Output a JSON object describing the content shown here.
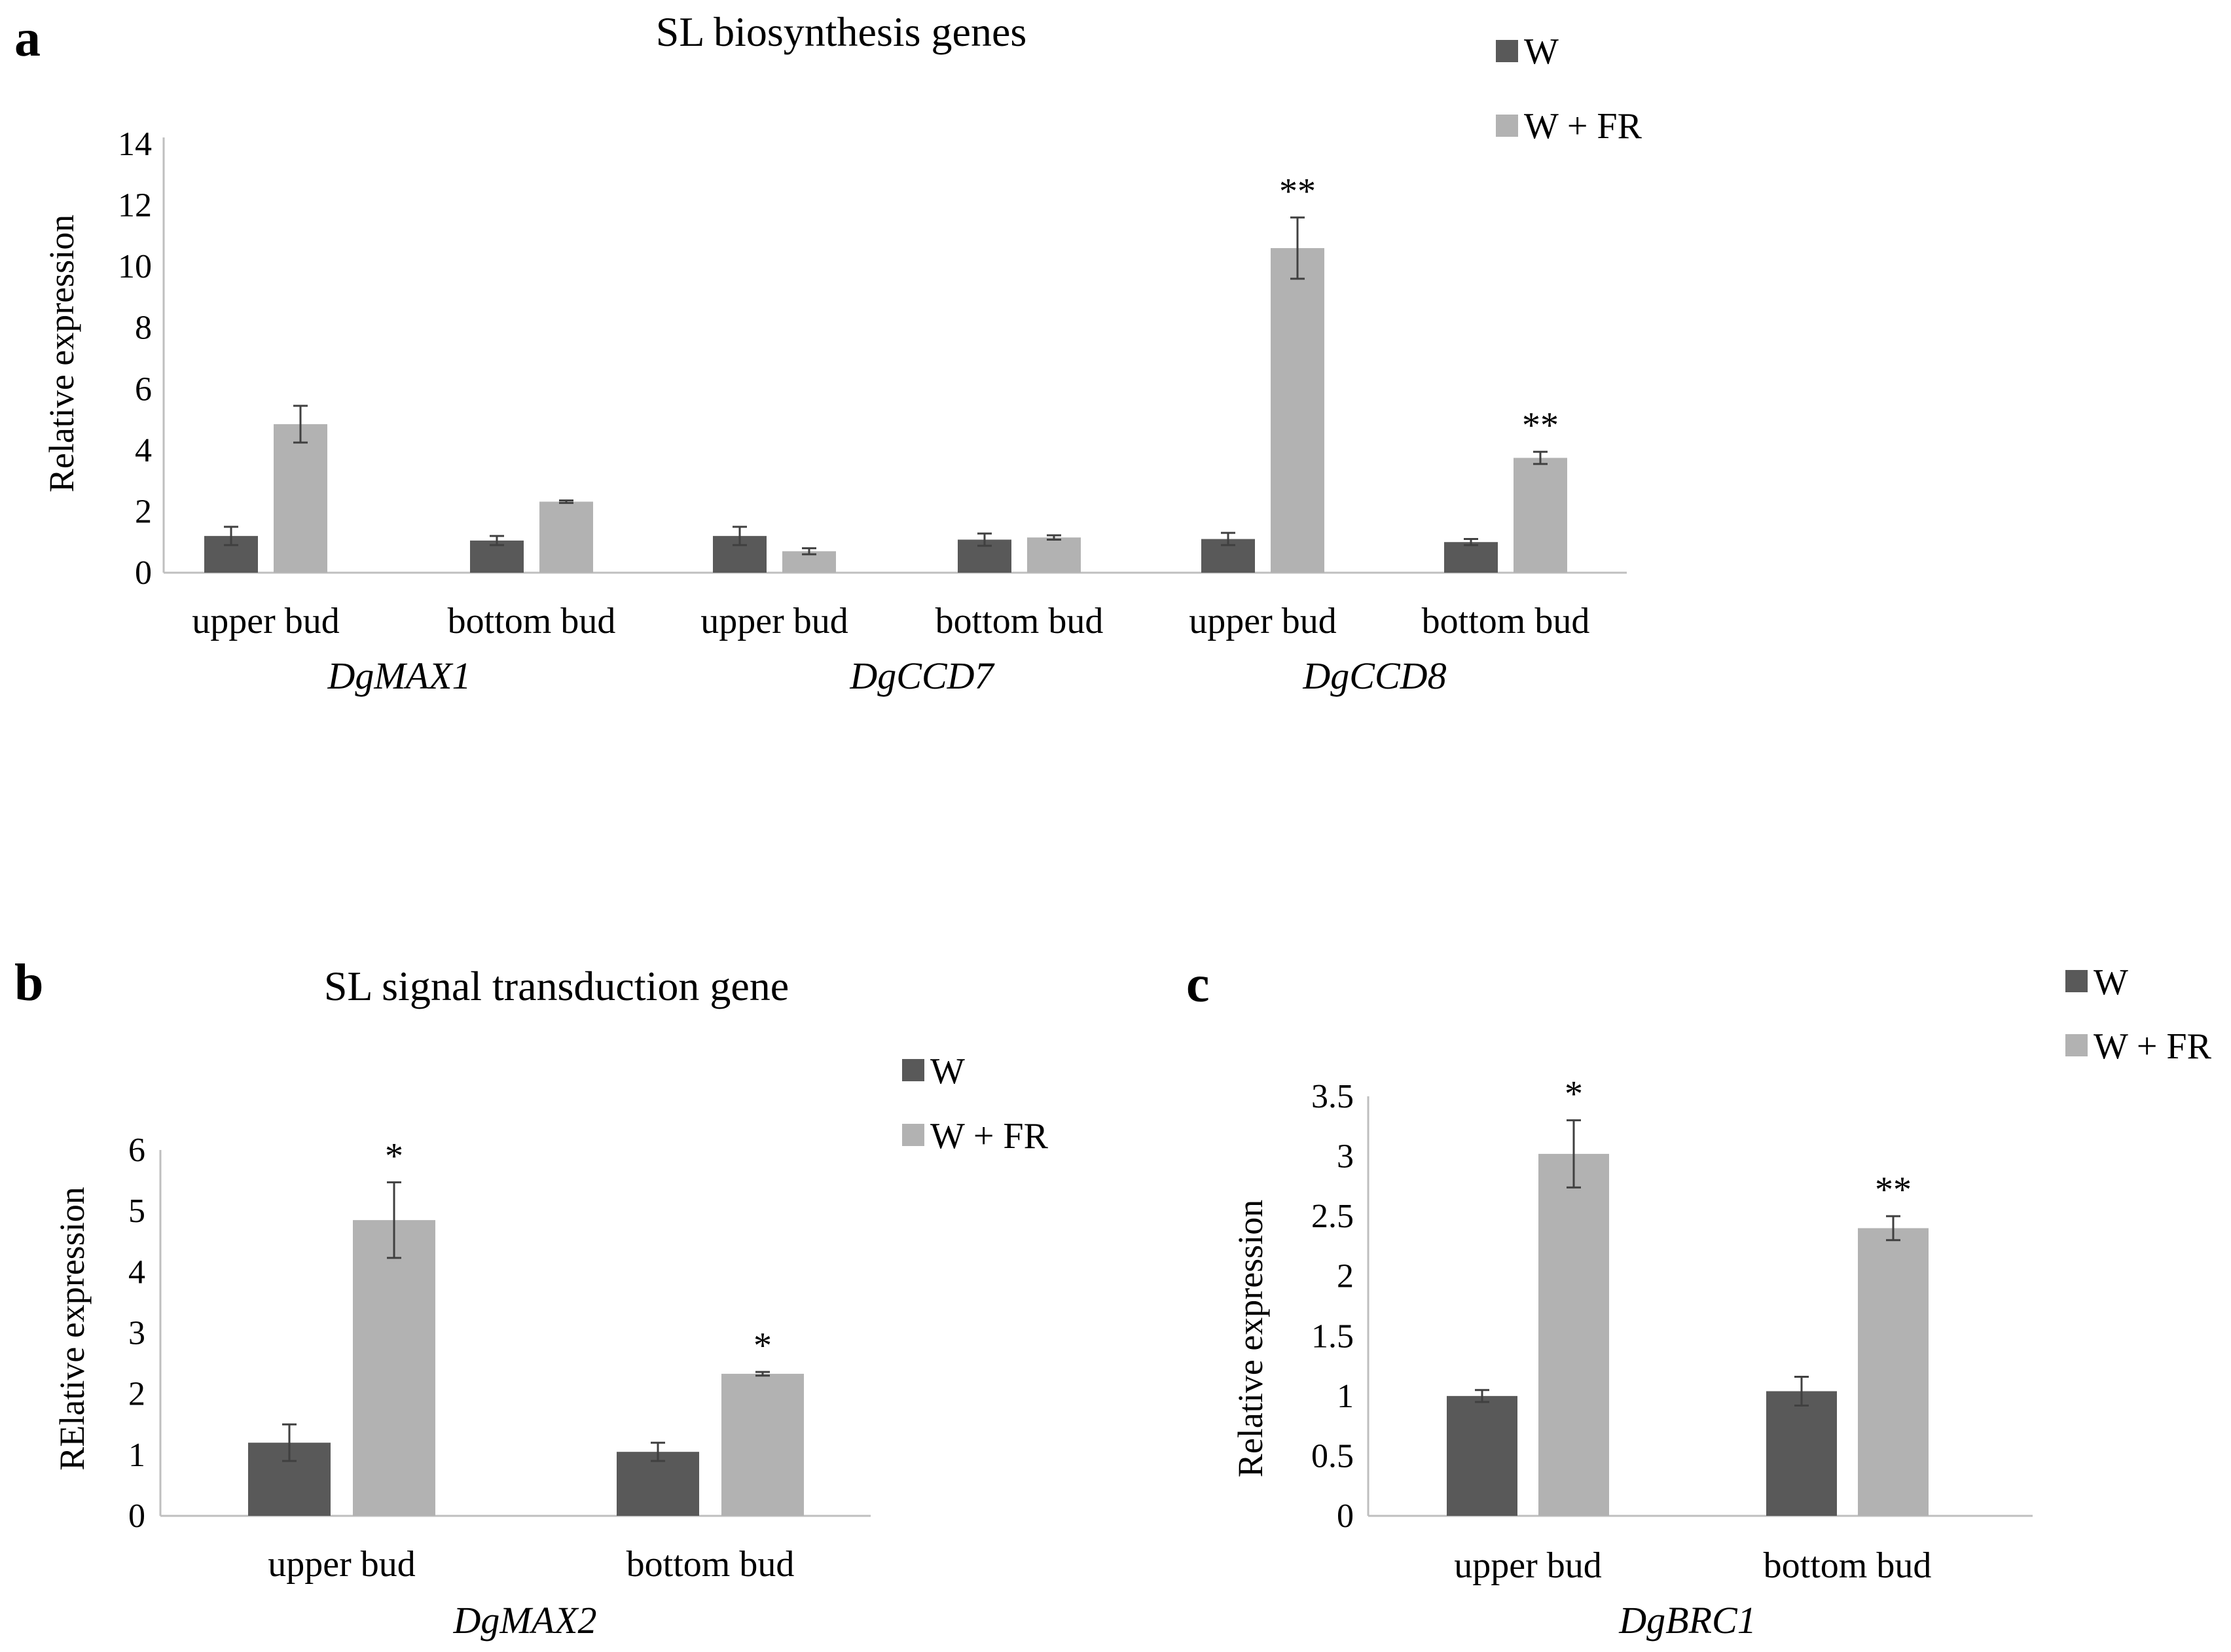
{
  "colors": {
    "W": "#595959",
    "W_FR": "#b2b2b2",
    "axis": "#bfbfbf",
    "error": "#404040"
  },
  "chart_data": [
    {
      "panel": "a",
      "type": "bar",
      "title": "SL biosynthesis genes",
      "ylabel": "Relative expression",
      "ylim": [
        0,
        14
      ],
      "yticks": [
        "0",
        "2",
        "4",
        "6",
        "8",
        "10",
        "12",
        "14"
      ],
      "tick_step": 2,
      "categories": [
        "upper bud",
        "bottom bud",
        "upper bud",
        "bottom bud",
        "upper bud",
        "bottom bud"
      ],
      "groups": [
        "DgMAX1",
        "DgCCD7",
        "DgCCD8"
      ],
      "legend": [
        "W",
        "W + FR"
      ],
      "series": [
        {
          "name": "W",
          "values": [
            1.2,
            1.05,
            1.2,
            1.08,
            1.1,
            1.0
          ],
          "errors": [
            0.3,
            0.15,
            0.3,
            0.2,
            0.2,
            0.1
          ]
        },
        {
          "name": "W + FR",
          "values": [
            4.85,
            2.32,
            0.7,
            1.15,
            10.6,
            3.75
          ],
          "errors": [
            0.6,
            0.04,
            0.1,
            0.07,
            1.0,
            0.2
          ]
        }
      ],
      "significance": [
        "",
        "",
        "",
        "",
        "**",
        "**"
      ]
    },
    {
      "panel": "b",
      "type": "bar",
      "title": "SL signal transduction gene",
      "ylabel": "RElative expression",
      "ylim": [
        0,
        6
      ],
      "yticks": [
        "0",
        "1",
        "2",
        "3",
        "4",
        "5",
        "6"
      ],
      "tick_step": 1,
      "categories": [
        "upper bud",
        "bottom bud"
      ],
      "groups": [
        "DgMAX2"
      ],
      "legend": [
        "W",
        "W + FR"
      ],
      "series": [
        {
          "name": "W",
          "values": [
            1.2,
            1.05
          ],
          "errors": [
            0.3,
            0.15
          ]
        },
        {
          "name": "W + FR",
          "values": [
            4.85,
            2.33
          ],
          "errors": [
            0.62,
            0.03
          ]
        }
      ],
      "significance": [
        "*",
        "*"
      ]
    },
    {
      "panel": "c",
      "type": "bar",
      "title": "",
      "ylabel": "Relative expression",
      "ylim": [
        0,
        3.5
      ],
      "yticks": [
        "0",
        "0.5",
        "1",
        "1.5",
        "2",
        "2.5",
        "3",
        "3.5"
      ],
      "tick_step": 0.5,
      "categories": [
        "upper bud",
        "bottom bud"
      ],
      "groups": [
        "DgBRC1"
      ],
      "legend": [
        "W",
        "W + FR"
      ],
      "series": [
        {
          "name": "W",
          "values": [
            1.0,
            1.04
          ],
          "errors": [
            0.05,
            0.12
          ]
        },
        {
          "name": "W + FR",
          "values": [
            3.02,
            2.4
          ],
          "errors": [
            0.28,
            0.1
          ]
        }
      ],
      "significance": [
        "*",
        "**"
      ]
    }
  ]
}
